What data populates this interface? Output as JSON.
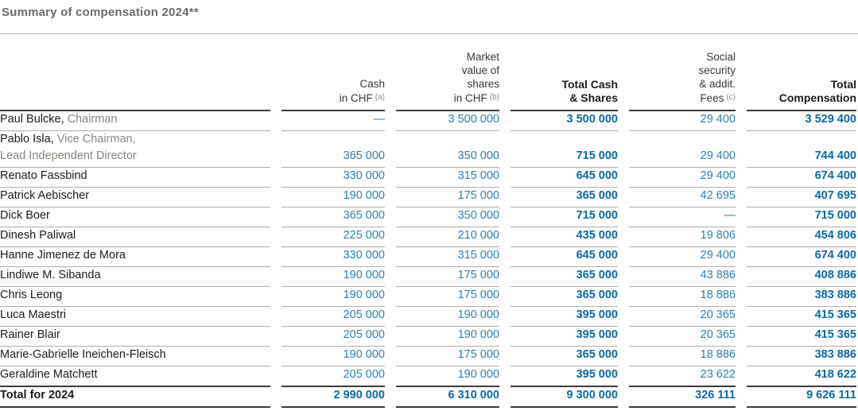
{
  "page_title": "Summary of compensation 2024**",
  "colors": {
    "title_gray": "#6e6b67",
    "number_regular_blue": "#2e7fb4",
    "number_bold_blue": "#0e69a4",
    "role_gray": "#8a8580",
    "rule_light": "#b1aeaa",
    "rule_dark": "#3d3b38"
  },
  "table": {
    "columns": [
      {
        "key": "name",
        "lines": [],
        "bold": false
      },
      {
        "key": "cash",
        "lines": [
          "Cash",
          "in CHF"
        ],
        "sup": "(a)",
        "bold": false
      },
      {
        "key": "shares",
        "lines": [
          "Market",
          "value of",
          "shares",
          "in CHF"
        ],
        "sup": "(b)",
        "bold": false
      },
      {
        "key": "total_cash_shares",
        "lines": [
          "Total Cash",
          "& Shares"
        ],
        "bold": true
      },
      {
        "key": "social",
        "lines": [
          "Social",
          "security",
          "& addit.",
          "Fees"
        ],
        "sup": "(c)",
        "bold": false
      },
      {
        "key": "total",
        "lines": [
          "Total",
          "Compensation"
        ],
        "bold": true
      }
    ],
    "rows": [
      {
        "name": "Paul Bulcke,",
        "role": "Chairman",
        "cash": "—",
        "shares": "3 500 000",
        "total_cash_shares": "3 500 000",
        "social": "29 400",
        "total": "3 529 400"
      },
      {
        "name": "Pablo Isla,",
        "role": "Vice Chairman,",
        "role_line2": "Lead Independent Director",
        "cash": "365 000",
        "shares": "350 000",
        "total_cash_shares": "715 000",
        "social": "29 400",
        "total": "744 400"
      },
      {
        "name": "Renato Fassbind",
        "cash": "330 000",
        "shares": "315 000",
        "total_cash_shares": "645 000",
        "social": "29 400",
        "total": "674 400"
      },
      {
        "name": "Patrick Aebischer",
        "cash": "190 000",
        "shares": "175 000",
        "total_cash_shares": "365 000",
        "social": "42 695",
        "total": "407 695"
      },
      {
        "name": "Dick Boer",
        "cash": "365 000",
        "shares": "350 000",
        "total_cash_shares": "715 000",
        "social": "—",
        "total": "715 000"
      },
      {
        "name": "Dinesh Paliwal",
        "cash": "225 000",
        "shares": "210 000",
        "total_cash_shares": "435 000",
        "social": "19 806",
        "total": "454 806"
      },
      {
        "name": "Hanne Jimenez de Mora",
        "cash": "330 000",
        "shares": "315 000",
        "total_cash_shares": "645 000",
        "social": "29 400",
        "total": "674 400"
      },
      {
        "name": "Lindiwe M. Sibanda",
        "cash": "190 000",
        "shares": "175 000",
        "total_cash_shares": "365 000",
        "social": "43 886",
        "total": "408 886"
      },
      {
        "name": "Chris Leong",
        "cash": "190 000",
        "shares": "175 000",
        "total_cash_shares": "365 000",
        "social": "18 886",
        "total": "383 886"
      },
      {
        "name": "Luca Maestri",
        "cash": "205 000",
        "shares": "190 000",
        "total_cash_shares": "395 000",
        "social": "20 365",
        "total": "415 365"
      },
      {
        "name": "Rainer Blair",
        "cash": "205 000",
        "shares": "190 000",
        "total_cash_shares": "395 000",
        "social": "20 365",
        "total": "415 365"
      },
      {
        "name": "Marie-Gabrielle Ineichen-Fleisch",
        "cash": "190 000",
        "shares": "175 000",
        "total_cash_shares": "365 000",
        "social": "18 886",
        "total": "383 886"
      },
      {
        "name": "Geraldine Matchett",
        "cash": "205 000",
        "shares": "190 000",
        "total_cash_shares": "395 000",
        "social": "23 622",
        "total": "418 622"
      }
    ],
    "total_row": {
      "name": "Total for 2024",
      "cash": "2 990 000",
      "shares": "6 310 000",
      "total_cash_shares": "9 300 000",
      "social": "326 111",
      "total": "9 626 111"
    }
  }
}
